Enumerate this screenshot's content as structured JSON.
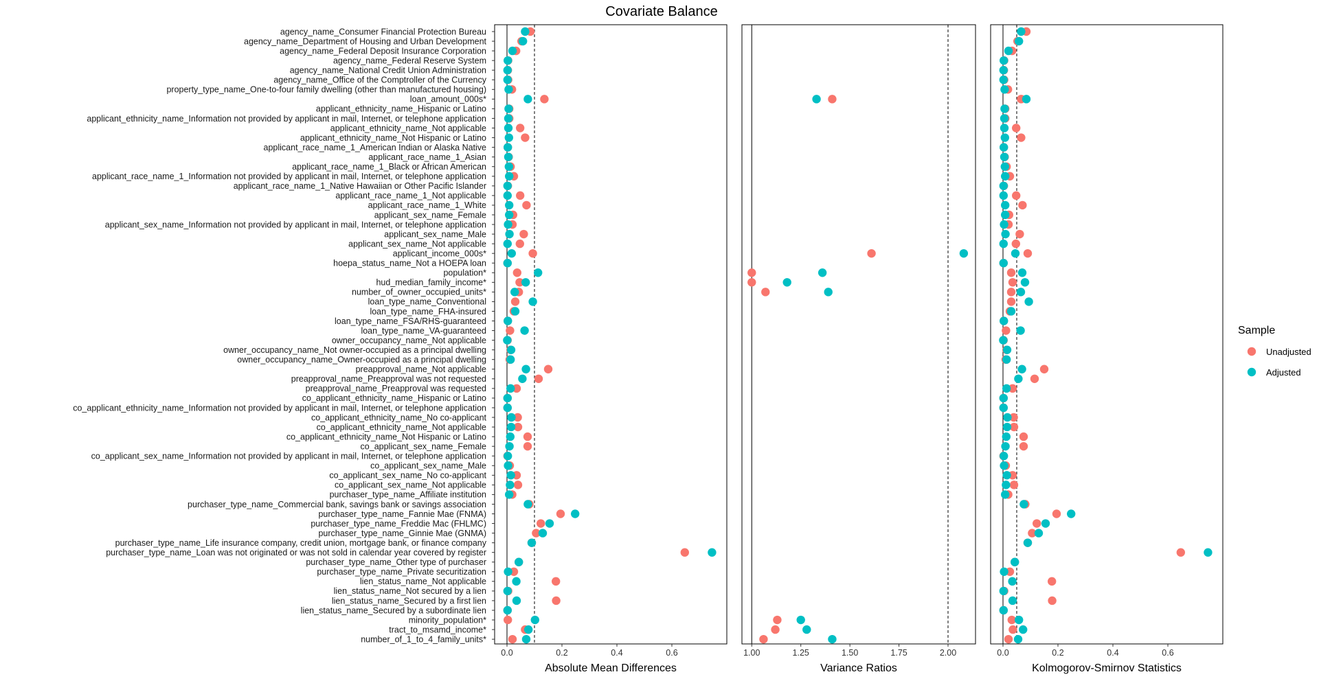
{
  "chart_data": {
    "type": "scatter",
    "title": "Covariate Balance",
    "legend": {
      "title": "Sample",
      "position": "right",
      "entries": [
        {
          "name": "Unadjusted",
          "color": "#F8766D"
        },
        {
          "name": "Adjusted",
          "color": "#00BFC4"
        }
      ]
    },
    "covariates": [
      "agency_name_Consumer Financial Protection Bureau",
      "agency_name_Department of Housing and Urban Development",
      "agency_name_Federal Deposit Insurance Corporation",
      "agency_name_Federal Reserve System",
      "agency_name_National Credit Union Administration",
      "agency_name_Office of the Comptroller of the Currency",
      "property_type_name_One-to-four family dwelling (other than manufactured housing)",
      "loan_amount_000s*",
      "applicant_ethnicity_name_Hispanic or Latino",
      "applicant_ethnicity_name_Information not provided by applicant in mail, Internet, or telephone application",
      "applicant_ethnicity_name_Not applicable",
      "applicant_ethnicity_name_Not Hispanic or Latino",
      "applicant_race_name_1_American Indian or Alaska Native",
      "applicant_race_name_1_Asian",
      "applicant_race_name_1_Black or African American",
      "applicant_race_name_1_Information not provided by applicant in mail, Internet, or telephone application",
      "applicant_race_name_1_Native Hawaiian or Other Pacific Islander",
      "applicant_race_name_1_Not applicable",
      "applicant_race_name_1_White",
      "applicant_sex_name_Female",
      "applicant_sex_name_Information not provided by applicant in mail, Internet, or telephone application",
      "applicant_sex_name_Male",
      "applicant_sex_name_Not applicable",
      "applicant_income_000s*",
      "hoepa_status_name_Not a HOEPA loan",
      "population*",
      "hud_median_family_income*",
      "number_of_owner_occupied_units*",
      "loan_type_name_Conventional",
      "loan_type_name_FHA-insured",
      "loan_type_name_FSA/RHS-guaranteed",
      "loan_type_name_VA-guaranteed",
      "owner_occupancy_name_Not applicable",
      "owner_occupancy_name_Not owner-occupied as a principal dwelling",
      "owner_occupancy_name_Owner-occupied as a principal dwelling",
      "preapproval_name_Not applicable",
      "preapproval_name_Preapproval was not requested",
      "preapproval_name_Preapproval was requested",
      "co_applicant_ethnicity_name_Hispanic or Latino",
      "co_applicant_ethnicity_name_Information not provided by applicant in mail, Internet, or telephone application",
      "co_applicant_ethnicity_name_No co-applicant",
      "co_applicant_ethnicity_name_Not applicable",
      "co_applicant_ethnicity_name_Not Hispanic or Latino",
      "co_applicant_sex_name_Female",
      "co_applicant_sex_name_Information not provided by applicant in mail, Internet, or telephone application",
      "co_applicant_sex_name_Male",
      "co_applicant_sex_name_No co-applicant",
      "co_applicant_sex_name_Not applicable",
      "purchaser_type_name_Affiliate institution",
      "purchaser_type_name_Commercial bank, savings bank or savings association",
      "purchaser_type_name_Fannie Mae (FNMA)",
      "purchaser_type_name_Freddie Mac (FHLMC)",
      "purchaser_type_name_Ginnie Mae (GNMA)",
      "purchaser_type_name_Life insurance company, credit union, mortgage bank, or finance company",
      "purchaser_type_name_Loan was not originated or was not sold in calendar year covered by register",
      "purchaser_type_name_Other type of purchaser",
      "purchaser_type_name_Private securitization",
      "lien_status_name_Not applicable",
      "lien_status_name_Not secured by a lien",
      "lien_status_name_Secured by a first lien",
      "lien_status_name_Secured by a subordinate lien",
      "minority_population*",
      "tract_to_msamd_income*",
      "number_of_1_to_4_family_units*"
    ],
    "panels": [
      {
        "xlabel": "Absolute Mean Differences",
        "xlim": [
          -0.045,
          0.8
        ],
        "ticks": [
          0.0,
          0.2,
          0.4,
          0.6
        ],
        "tick_labels": [
          "0.0",
          "0.2",
          "0.4",
          "0.6"
        ],
        "reference_line": 0,
        "threshold_line": 0.1,
        "series": [
          {
            "name": "Unadjusted",
            "values": [
              0.085,
              0.053,
              0.033,
              0.004,
              0.003,
              0.004,
              0.018,
              0.136,
              0.008,
              0.008,
              0.048,
              0.066,
              0.003,
              0.006,
              0.013,
              0.025,
              0.003,
              0.048,
              0.071,
              0.022,
              0.02,
              0.061,
              0.047,
              0.094,
              0.002,
              0.037,
              0.046,
              0.043,
              0.03,
              0.025,
              0.003,
              0.011,
              0.002,
              0.013,
              0.01,
              0.15,
              0.115,
              0.035,
              0.002,
              0.002,
              0.039,
              0.04,
              0.075,
              0.075,
              0.002,
              0.01,
              0.035,
              0.04,
              0.019,
              0.081,
              0.195,
              0.123,
              0.106,
              0.09,
              0.647,
              0.043,
              0.025,
              0.178,
              0.004,
              0.179,
              0.002,
              0.003,
              0.066,
              0.02
            ]
          },
          {
            "name": "Adjusted",
            "values": [
              0.066,
              0.058,
              0.02,
              0.003,
              0.002,
              0.002,
              0.006,
              0.076,
              0.006,
              0.005,
              0.005,
              0.007,
              0.003,
              0.005,
              0.007,
              0.008,
              0.002,
              0.002,
              0.008,
              0.008,
              0.004,
              0.009,
              0.002,
              0.017,
              0.002,
              0.113,
              0.068,
              0.028,
              0.094,
              0.03,
              0.003,
              0.064,
              0.001,
              0.015,
              0.013,
              0.069,
              0.056,
              0.013,
              0.002,
              0.002,
              0.016,
              0.015,
              0.012,
              0.009,
              0.003,
              0.004,
              0.014,
              0.011,
              0.008,
              0.076,
              0.248,
              0.155,
              0.13,
              0.09,
              0.746,
              0.043,
              0.004,
              0.034,
              0.002,
              0.035,
              0.002,
              0.102,
              0.078,
              0.07
            ]
          }
        ]
      },
      {
        "xlabel": "Variance Ratios",
        "xlim": [
          0.95,
          2.14
        ],
        "ticks": [
          1.0,
          1.25,
          1.5,
          1.75,
          2.0
        ],
        "tick_labels": [
          "1.00",
          "1.25",
          "1.50",
          "1.75",
          "2.00"
        ],
        "reference_line": 1,
        "threshold_line": 2,
        "series": [
          {
            "name": "Unadjusted",
            "values": [
              null,
              null,
              null,
              null,
              null,
              null,
              null,
              1.41,
              null,
              null,
              null,
              null,
              null,
              null,
              null,
              null,
              null,
              null,
              null,
              null,
              null,
              null,
              null,
              1.61,
              null,
              1.0,
              1.0,
              1.07,
              null,
              null,
              null,
              null,
              null,
              null,
              null,
              null,
              null,
              null,
              null,
              null,
              null,
              null,
              null,
              null,
              null,
              null,
              null,
              null,
              null,
              null,
              null,
              null,
              null,
              null,
              null,
              null,
              null,
              null,
              null,
              null,
              null,
              1.13,
              1.12,
              1.06
            ]
          },
          {
            "name": "Adjusted",
            "values": [
              null,
              null,
              null,
              null,
              null,
              null,
              null,
              1.33,
              null,
              null,
              null,
              null,
              null,
              null,
              null,
              null,
              null,
              null,
              null,
              null,
              null,
              null,
              null,
              2.08,
              null,
              1.36,
              1.18,
              1.39,
              null,
              null,
              null,
              null,
              null,
              null,
              null,
              null,
              null,
              null,
              null,
              null,
              null,
              null,
              null,
              null,
              null,
              null,
              null,
              null,
              null,
              null,
              null,
              null,
              null,
              null,
              null,
              null,
              null,
              null,
              null,
              null,
              null,
              1.25,
              1.28,
              1.41
            ]
          }
        ]
      },
      {
        "xlabel": "Kolmogorov-Smirnov Statistics",
        "xlim": [
          -0.045,
          0.8
        ],
        "ticks": [
          0.0,
          0.2,
          0.4,
          0.6
        ],
        "tick_labels": [
          "0.0",
          "0.2",
          "0.4",
          "0.6"
        ],
        "reference_line": 0,
        "threshold_line": 0.05,
        "series": [
          {
            "name": "Unadjusted",
            "values": [
              0.085,
              0.053,
              0.033,
              0.004,
              0.003,
              0.004,
              0.018,
              0.066,
              0.008,
              0.008,
              0.048,
              0.066,
              0.003,
              0.006,
              0.013,
              0.025,
              0.003,
              0.048,
              0.071,
              0.022,
              0.02,
              0.061,
              0.047,
              0.09,
              0.002,
              0.03,
              0.035,
              0.03,
              0.03,
              0.025,
              0.003,
              0.011,
              0.002,
              0.013,
              0.01,
              0.15,
              0.115,
              0.035,
              0.002,
              0.002,
              0.039,
              0.04,
              0.075,
              0.075,
              0.002,
              0.01,
              0.035,
              0.04,
              0.019,
              0.081,
              0.195,
              0.123,
              0.106,
              0.09,
              0.647,
              0.043,
              0.025,
              0.178,
              0.004,
              0.179,
              0.002,
              0.032,
              0.036,
              0.02
            ]
          },
          {
            "name": "Adjusted",
            "values": [
              0.066,
              0.058,
              0.02,
              0.003,
              0.002,
              0.002,
              0.006,
              0.085,
              0.006,
              0.005,
              0.005,
              0.007,
              0.003,
              0.005,
              0.007,
              0.008,
              0.002,
              0.002,
              0.008,
              0.008,
              0.004,
              0.009,
              0.002,
              0.045,
              0.002,
              0.07,
              0.08,
              0.065,
              0.094,
              0.03,
              0.003,
              0.064,
              0.001,
              0.015,
              0.013,
              0.069,
              0.056,
              0.013,
              0.002,
              0.002,
              0.016,
              0.015,
              0.012,
              0.009,
              0.003,
              0.004,
              0.014,
              0.011,
              0.008,
              0.076,
              0.248,
              0.155,
              0.13,
              0.09,
              0.746,
              0.043,
              0.004,
              0.034,
              0.002,
              0.035,
              0.002,
              0.058,
              0.073,
              0.055
            ]
          }
        ]
      }
    ]
  }
}
